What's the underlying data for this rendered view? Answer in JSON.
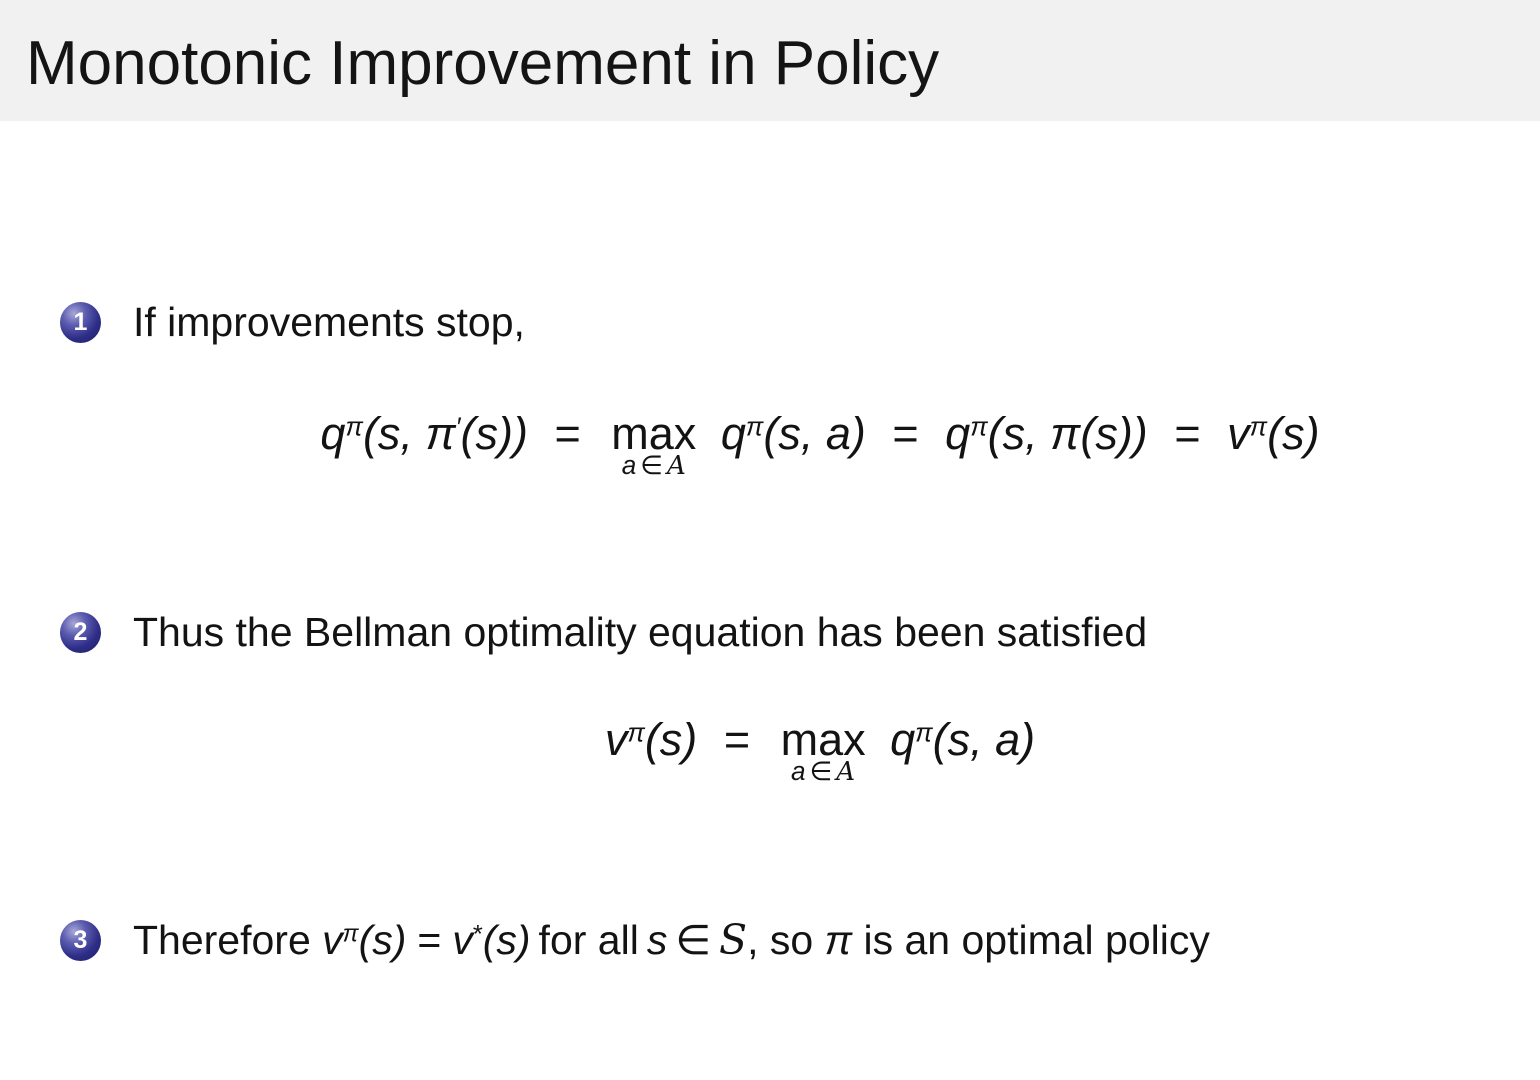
{
  "slide": {
    "title": "Monotonic Improvement in Policy",
    "items": [
      {
        "number": "1",
        "text": "If improvements stop,"
      },
      {
        "number": "2",
        "text": "Thus the Bellman optimality equation has been satisfied"
      },
      {
        "number": "3"
      }
    ],
    "formula1": {
      "q1": "q",
      "q1_sup": "π",
      "q1_args_a": "(s, ",
      "q1_pi": "π",
      "q1_prime": "′",
      "q1_args_b": "(s))",
      "eq1": "=",
      "op": "max",
      "under_a": "a",
      "under_in": "∈",
      "under_A": "A",
      "q2": "q",
      "q2_sup": "π",
      "q2_args": "(s, a)",
      "eq2": "=",
      "q3": "q",
      "q3_sup": "π",
      "q3_args_a": "(s, ",
      "q3_pi": "π",
      "q3_args_b": "(s))",
      "eq3": "=",
      "v": "v",
      "v_sup": "π",
      "v_args": "(s)"
    },
    "formula2": {
      "v": "v",
      "v_sup": "π",
      "v_args": "(s)",
      "eq": "=",
      "op": "max",
      "under_a": "a",
      "under_in": "∈",
      "under_A": "A",
      "q": "q",
      "q_sup": "π",
      "q_args": "(s, a)"
    },
    "item3": {
      "pre": "Therefore ",
      "v1": "v",
      "v1_sup": "π",
      "v1_args": "(s)",
      "eq": "=",
      "v2": "v",
      "v2_sup": "*",
      "v2_args": "(s)",
      "mid": "for all",
      "s": "s",
      "in": "∈",
      "S": "S",
      "post1": ", so ",
      "pi": "π",
      "post2": " is an optimal policy"
    }
  },
  "colors": {
    "header_bg": "#f1f1f1",
    "badge": "#1b1b64",
    "text": "#131313"
  }
}
